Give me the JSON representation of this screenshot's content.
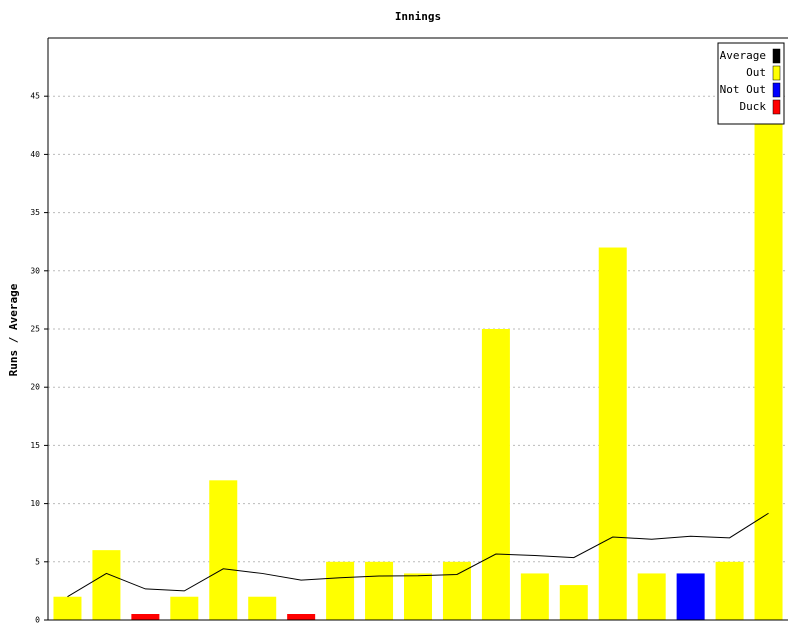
{
  "chart_data": {
    "type": "bar",
    "title": "Innings",
    "y_label": "Runs / Average",
    "ylim": [
      0,
      50
    ],
    "yticks": [
      0,
      5,
      10,
      15,
      20,
      25,
      30,
      35,
      40,
      45
    ],
    "grid": true,
    "legend": "top-right",
    "series": [
      {
        "name": "Average",
        "type": "line",
        "color": "#000000",
        "values": [
          2,
          4,
          2.67,
          2.5,
          4.4,
          4,
          3.43,
          3.63,
          3.78,
          3.8,
          3.91,
          5.67,
          5.54,
          5.36,
          7.13,
          6.94,
          7.19,
          7.06,
          9.17
        ]
      },
      {
        "name": "Out",
        "type": "bar",
        "color": "#ffff00",
        "values": [
          2,
          6,
          null,
          2,
          12,
          2,
          null,
          5,
          5,
          4,
          5,
          25,
          4,
          3,
          32,
          4,
          null,
          5,
          45
        ]
      },
      {
        "name": "Not Out",
        "type": "bar",
        "color": "#0000ff",
        "values": [
          null,
          null,
          null,
          null,
          null,
          null,
          null,
          null,
          null,
          null,
          null,
          null,
          null,
          null,
          null,
          null,
          4,
          null,
          null
        ]
      },
      {
        "name": "Duck",
        "type": "bar",
        "color": "#ff0000",
        "values": [
          null,
          null,
          0,
          null,
          null,
          null,
          0,
          null,
          null,
          null,
          null,
          null,
          null,
          null,
          null,
          null,
          null,
          null,
          null
        ]
      }
    ]
  }
}
